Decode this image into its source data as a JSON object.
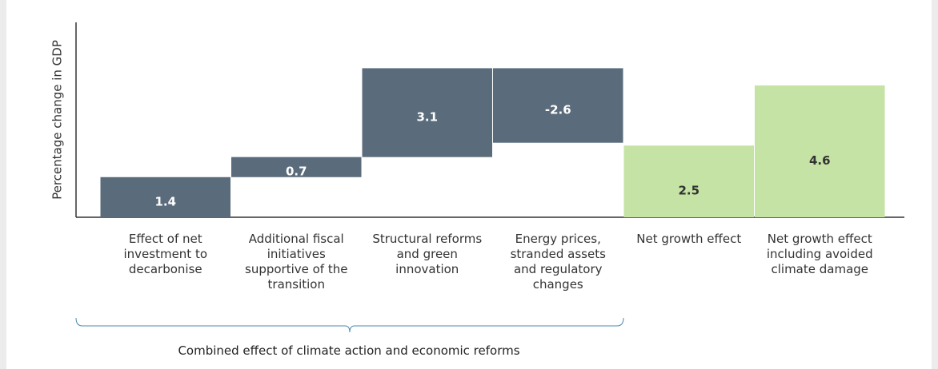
{
  "chart_data": {
    "type": "waterfall",
    "ylabel": "Percentage change in GDP",
    "categories": [
      "Effect of net investment to decarbonise",
      "Additional fiscal initiatives supportive of the transition",
      "Structural reforms and green innovation",
      "Energy prices, stranded assets and regulatory changes",
      "Net growth effect",
      "Net growth effect including avoided climate damage"
    ],
    "values": [
      1.4,
      0.7,
      3.1,
      -2.6,
      2.5,
      4.6
    ],
    "is_total": [
      false,
      false,
      false,
      false,
      true,
      true
    ],
    "step_color": "#5a6b7b",
    "total_color": "#c5e3a4",
    "ylim": [
      0,
      6.8
    ],
    "annotation": "Combined effect of climate action and economic reforms"
  }
}
